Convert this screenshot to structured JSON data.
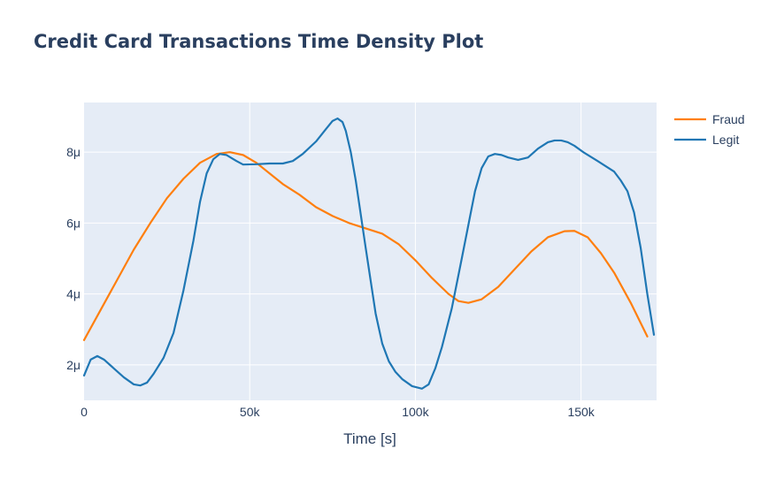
{
  "chart_data": {
    "type": "line",
    "title": "Credit Card Transactions Time Density Plot",
    "xlabel": "Time [s]",
    "ylabel": "",
    "xlim": [
      0,
      172800
    ],
    "ylim": [
      1e-06,
      9.4e-06
    ],
    "x_ticks": [
      {
        "value": 0,
        "label": "0"
      },
      {
        "value": 50000,
        "label": "50k"
      },
      {
        "value": 100000,
        "label": "100k"
      },
      {
        "value": 150000,
        "label": "150k"
      }
    ],
    "y_ticks": [
      {
        "value": 2e-06,
        "label": "2μ"
      },
      {
        "value": 4e-06,
        "label": "4μ"
      },
      {
        "value": 6e-06,
        "label": "6μ"
      },
      {
        "value": 8e-06,
        "label": "8μ"
      }
    ],
    "grid": true,
    "legend_position": "top-right",
    "series": [
      {
        "name": "Fraud",
        "color": "#ff7f0e",
        "x": [
          0,
          5000,
          10000,
          15000,
          20000,
          25000,
          30000,
          35000,
          40000,
          44000,
          48000,
          52000,
          56000,
          60000,
          65000,
          70000,
          75000,
          80000,
          85000,
          90000,
          95000,
          100000,
          105000,
          110000,
          113000,
          116000,
          120000,
          125000,
          130000,
          135000,
          140000,
          145000,
          148000,
          152000,
          156000,
          160000,
          165000,
          170000
        ],
        "y": [
          2.7e-06,
          3.55e-06,
          4.4e-06,
          5.25e-06,
          6e-06,
          6.7e-06,
          7.25e-06,
          7.7e-06,
          7.95e-06,
          8e-06,
          7.92e-06,
          7.7e-06,
          7.4e-06,
          7.1e-06,
          6.8e-06,
          6.45e-06,
          6.2e-06,
          6e-06,
          5.85e-06,
          5.7e-06,
          5.4e-06,
          4.95e-06,
          4.45e-06,
          4e-06,
          3.8e-06,
          3.75e-06,
          3.85e-06,
          4.2e-06,
          4.7e-06,
          5.2e-06,
          5.6e-06,
          5.77e-06,
          5.78e-06,
          5.6e-06,
          5.15e-06,
          4.6e-06,
          3.75e-06,
          2.8e-06
        ]
      },
      {
        "name": "Legit",
        "color": "#1f77b4",
        "x": [
          0,
          2000,
          4000,
          6000,
          9000,
          12000,
          15000,
          17000,
          19000,
          21000,
          24000,
          27000,
          30000,
          33000,
          35000,
          37000,
          39000,
          41000,
          43000,
          46000,
          48000,
          52000,
          56000,
          60000,
          63000,
          66000,
          70000,
          73000,
          75000,
          76500,
          78000,
          79000,
          80500,
          82000,
          85000,
          88000,
          90000,
          92000,
          94000,
          96000,
          99000,
          102000,
          104000,
          106000,
          108000,
          111000,
          114000,
          118000,
          120000,
          122000,
          124000,
          126000,
          128000,
          131000,
          134000,
          137000,
          140000,
          142000,
          144000,
          146000,
          148000,
          151000,
          155000,
          160000,
          162000,
          164000,
          166000,
          168000,
          170000,
          172000
        ],
        "y": [
          1.7e-06,
          2.15e-06,
          2.25e-06,
          2.15e-06,
          1.9e-06,
          1.65e-06,
          1.45e-06,
          1.42e-06,
          1.5e-06,
          1.75e-06,
          2.2e-06,
          2.9e-06,
          4.1e-06,
          5.5e-06,
          6.6e-06,
          7.4e-06,
          7.8e-06,
          7.95e-06,
          7.92e-06,
          7.75e-06,
          7.65e-06,
          7.66e-06,
          7.68e-06,
          7.68e-06,
          7.75e-06,
          7.95e-06,
          8.3e-06,
          8.65e-06,
          8.88e-06,
          8.95e-06,
          8.85e-06,
          8.6e-06,
          8e-06,
          7.2e-06,
          5.3e-06,
          3.45e-06,
          2.6e-06,
          2.1e-06,
          1.8e-06,
          1.6e-06,
          1.4e-06,
          1.33e-06,
          1.45e-06,
          1.9e-06,
          2.5e-06,
          3.6e-06,
          5e-06,
          6.9e-06,
          7.55e-06,
          7.88e-06,
          7.95e-06,
          7.92e-06,
          7.85e-06,
          7.78e-06,
          7.85e-06,
          8.1e-06,
          8.28e-06,
          8.33e-06,
          8.33e-06,
          8.28e-06,
          8.18e-06,
          7.98e-06,
          7.75e-06,
          7.45e-06,
          7.2e-06,
          6.9e-06,
          6.3e-06,
          5.3e-06,
          4e-06,
          2.85e-06
        ]
      }
    ]
  }
}
